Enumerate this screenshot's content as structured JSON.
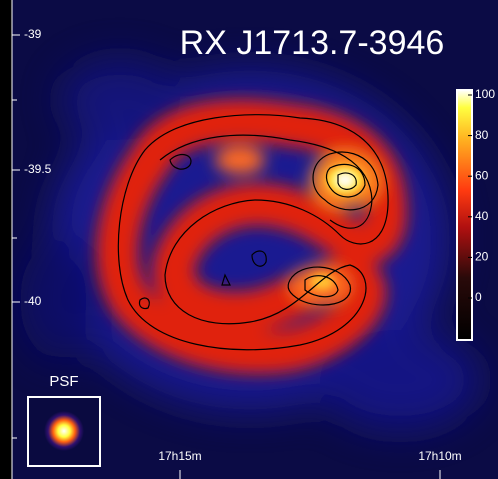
{
  "title": "RX J1713.7-3946",
  "dec_ticks": [
    "-39",
    "-39.5",
    "-40"
  ],
  "ra_ticks": [
    "17h15m",
    "17h10m"
  ],
  "colorbar_ticks": [
    100,
    80,
    60,
    40,
    20,
    0
  ],
  "psf_label": "PSF"
}
